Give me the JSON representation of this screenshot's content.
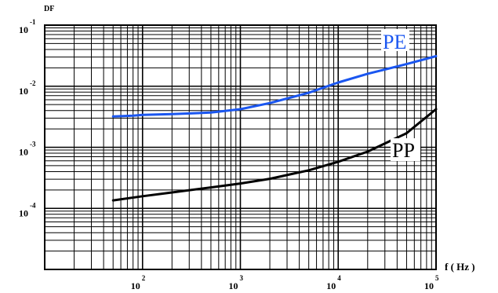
{
  "chart_data": {
    "type": "line",
    "title": "",
    "xlabel": "f ( Hz )",
    "ylabel": "DF",
    "xscale": "log",
    "yscale": "log",
    "xlim": [
      10,
      100000
    ],
    "ylim": [
      1e-05,
      0.1
    ],
    "grid": true,
    "x_tick_labels": [
      {
        "base": "10",
        "exp": "2",
        "value": 100
      },
      {
        "base": "10",
        "exp": "3",
        "value": 1000
      },
      {
        "base": "10",
        "exp": "4",
        "value": 10000
      },
      {
        "base": "10",
        "exp": "5",
        "value": 100000
      }
    ],
    "y_tick_labels": [
      {
        "base": "10",
        "exp": "-1",
        "value": 0.1
      },
      {
        "base": "10",
        "exp": "-2",
        "value": 0.01
      },
      {
        "base": "10",
        "exp": "-3",
        "value": 0.001
      },
      {
        "base": "10",
        "exp": "-4",
        "value": 0.0001
      }
    ],
    "series": [
      {
        "name": "PE",
        "color": "#1a56f0",
        "x": [
          50,
          80,
          100,
          200,
          500,
          1000,
          2000,
          5000,
          10000,
          20000,
          50000,
          100000
        ],
        "y": [
          0.0032,
          0.0033,
          0.0034,
          0.0035,
          0.0037,
          0.0042,
          0.0053,
          0.0078,
          0.0115,
          0.016,
          0.023,
          0.031
        ]
      },
      {
        "name": "PP",
        "color": "#000000",
        "x": [
          50,
          100,
          200,
          500,
          1000,
          2000,
          5000,
          10000,
          20000,
          50000,
          100000
        ],
        "y": [
          0.000135,
          0.000158,
          0.000182,
          0.00022,
          0.000255,
          0.000305,
          0.00042,
          0.00058,
          0.00085,
          0.0017,
          0.0042
        ]
      }
    ]
  }
}
